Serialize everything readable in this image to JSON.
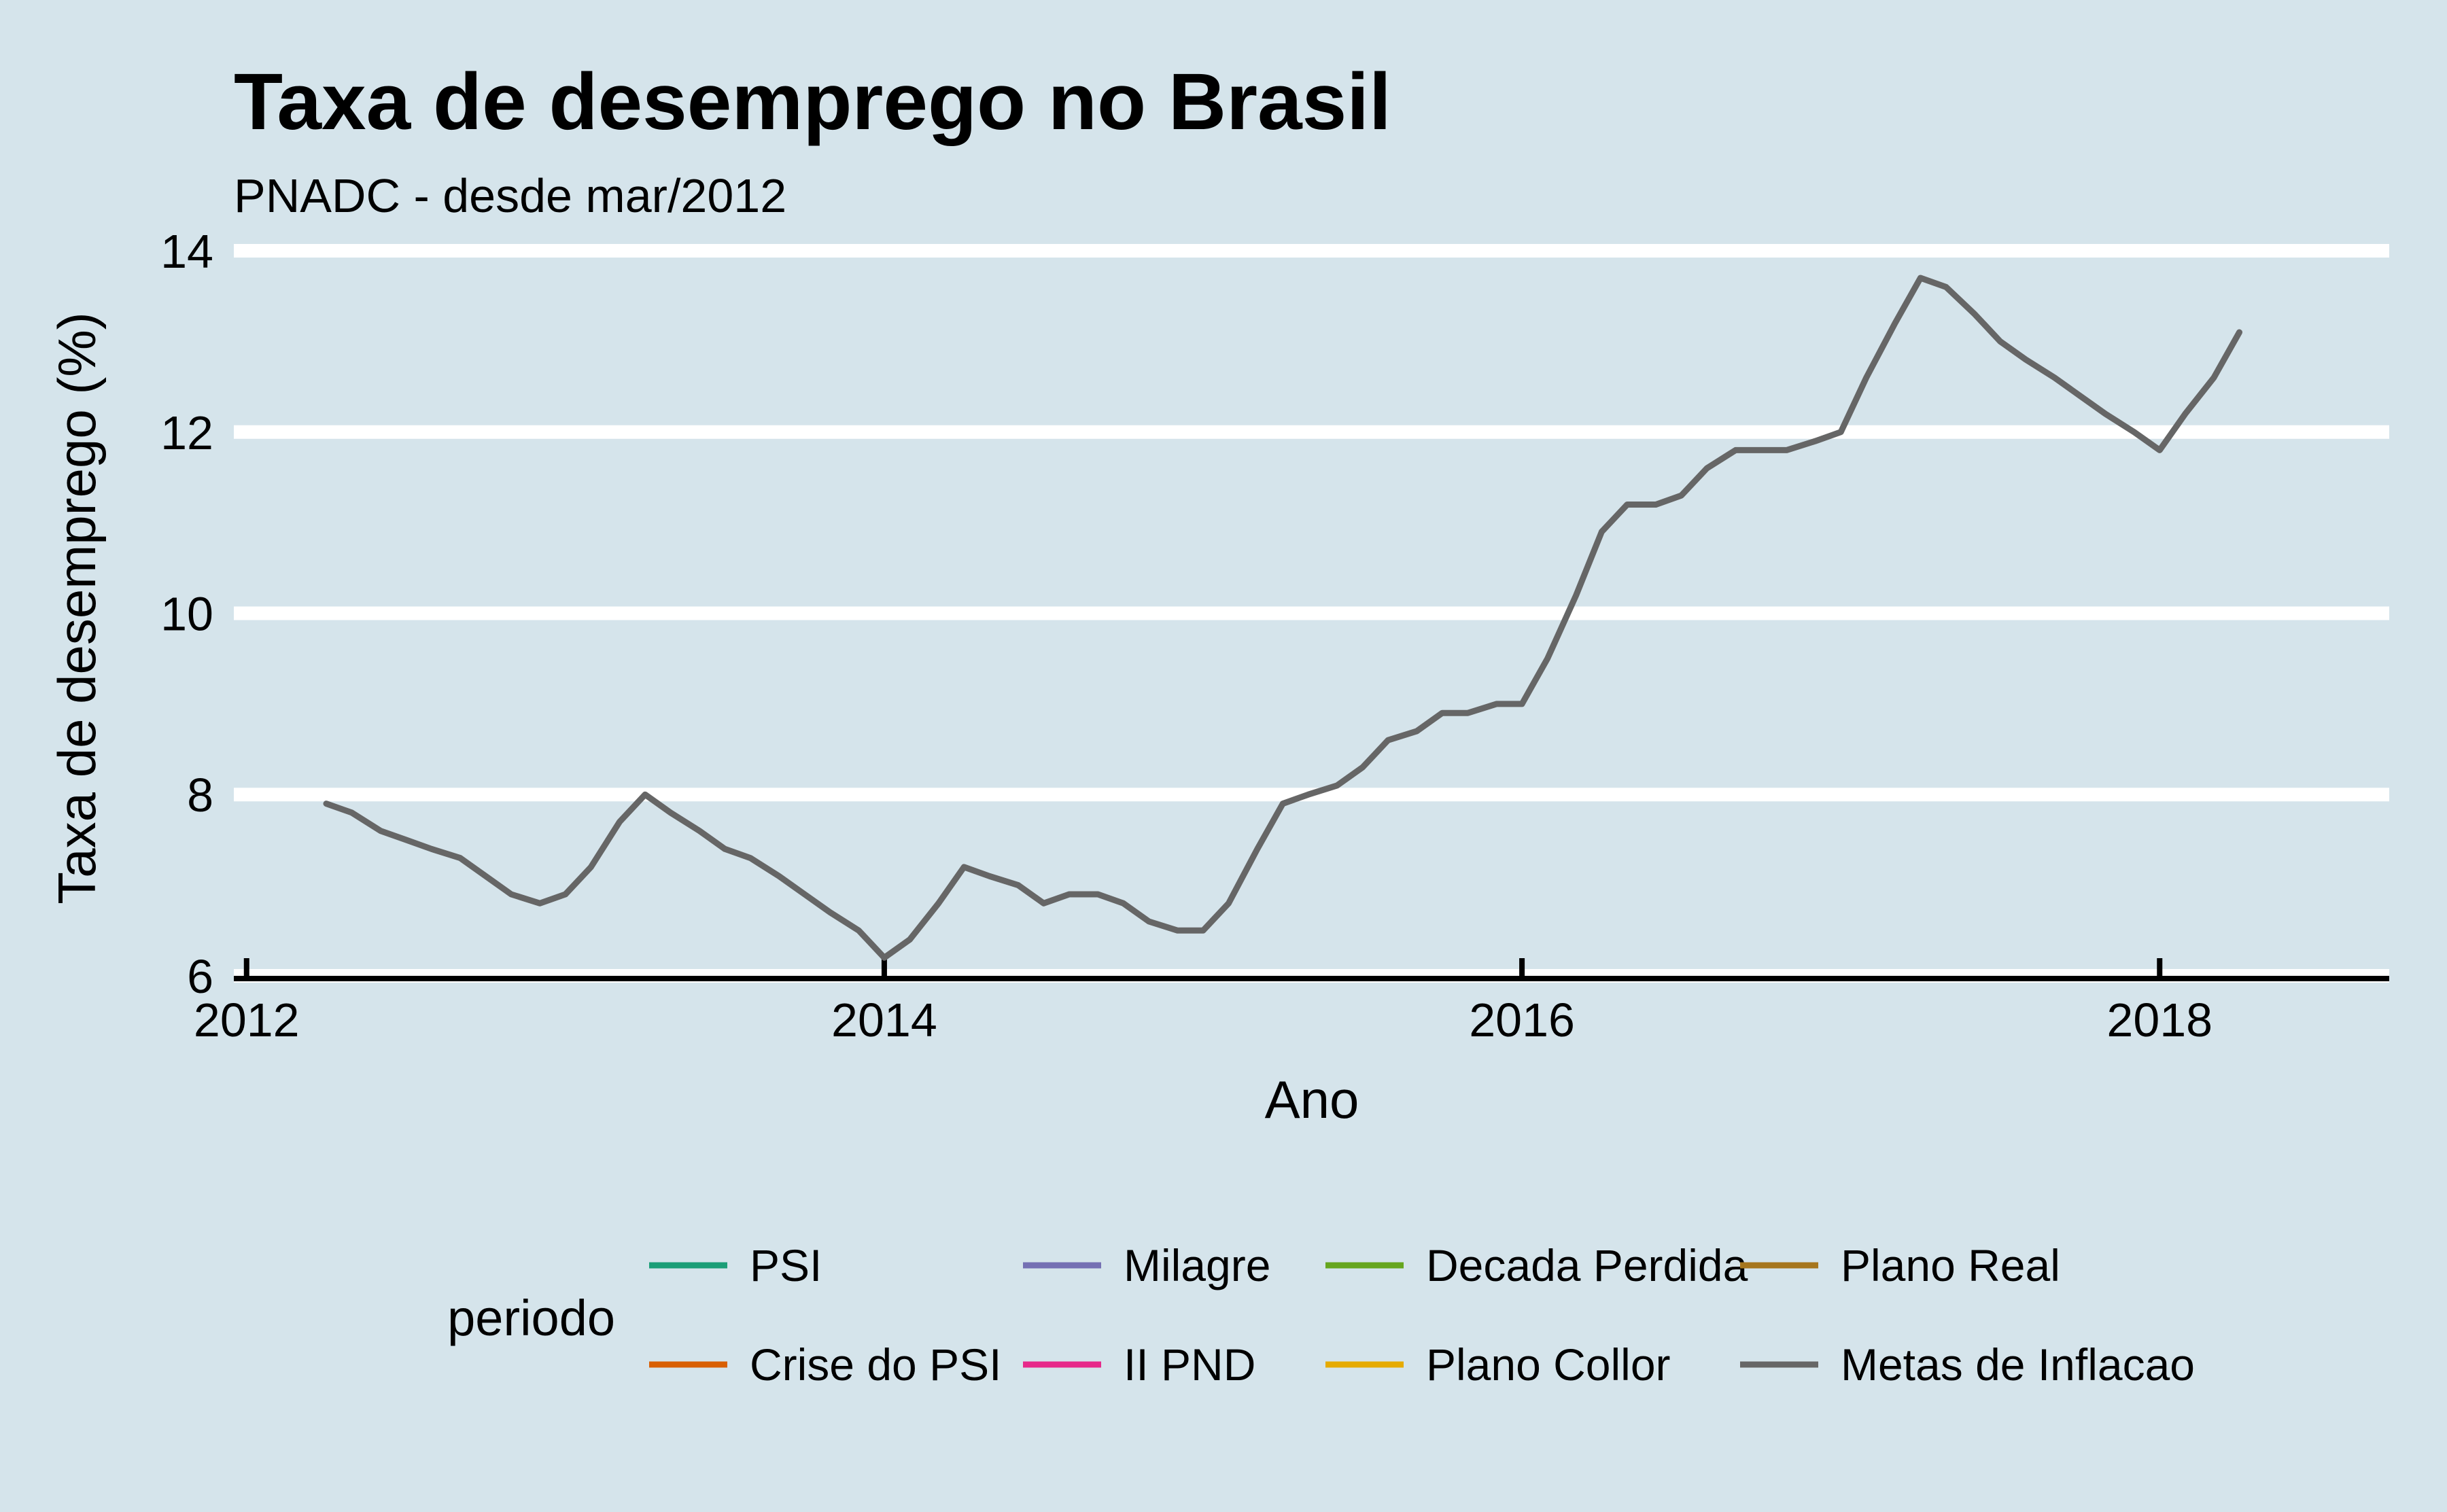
{
  "chart_data": {
    "type": "line",
    "title": "Taxa de desemprego no Brasil",
    "subtitle": "PNADC - desde mar/2012",
    "xlabel": "Ano",
    "ylabel": "Taxa de desemprego (%)",
    "xlim": [
      2011.96,
      2018.72
    ],
    "ylim": [
      5.97,
      14.03
    ],
    "x_ticks": [
      2012,
      2014,
      2016,
      2018
    ],
    "y_ticks": [
      6,
      8,
      10,
      12,
      14
    ],
    "grid": "horizontal",
    "legend_placement": "bottom",
    "legend_title": "periodo",
    "legend": [
      {
        "name": "PSI",
        "color": "#1b9e77"
      },
      {
        "name": "Crise do PSI",
        "color": "#d95f02"
      },
      {
        "name": "Milagre",
        "color": "#7570b3"
      },
      {
        "name": "II PND",
        "color": "#e7298a"
      },
      {
        "name": "Decada Perdida",
        "color": "#66a61e"
      },
      {
        "name": "Plano Collor",
        "color": "#e6ab02"
      },
      {
        "name": "Plano Real",
        "color": "#a6761d"
      },
      {
        "name": "Metas de Inflacao",
        "color": "#666666"
      }
    ],
    "series": [
      {
        "name": "Metas de Inflacao",
        "color": "#666666",
        "x": [
          2012.25,
          2012.33,
          2012.42,
          2012.5,
          2012.58,
          2012.67,
          2012.75,
          2012.83,
          2012.92,
          2013.0,
          2013.08,
          2013.17,
          2013.25,
          2013.33,
          2013.42,
          2013.5,
          2013.58,
          2013.67,
          2013.75,
          2013.83,
          2013.92,
          2014.0,
          2014.08,
          2014.17,
          2014.25,
          2014.33,
          2014.42,
          2014.5,
          2014.58,
          2014.67,
          2014.75,
          2014.83,
          2014.92,
          2015.0,
          2015.08,
          2015.17,
          2015.25,
          2015.33,
          2015.42,
          2015.5,
          2015.58,
          2015.67,
          2015.75,
          2015.83,
          2015.92,
          2016.0,
          2016.08,
          2016.17,
          2016.25,
          2016.33,
          2016.42,
          2016.5,
          2016.58,
          2016.67,
          2016.75,
          2016.83,
          2016.92,
          2017.0,
          2017.08,
          2017.17,
          2017.25,
          2017.33,
          2017.42,
          2017.5,
          2017.58,
          2017.67,
          2017.75,
          2017.83,
          2017.92,
          2018.0,
          2018.08,
          2018.17,
          2018.25
        ],
        "y": [
          7.9,
          7.8,
          7.6,
          7.5,
          7.4,
          7.3,
          7.1,
          6.9,
          6.8,
          6.9,
          7.2,
          7.7,
          8.0,
          7.8,
          7.6,
          7.4,
          7.3,
          7.1,
          6.9,
          6.7,
          6.5,
          6.2,
          6.4,
          6.8,
          7.2,
          7.1,
          7.0,
          6.8,
          6.9,
          6.9,
          6.8,
          6.6,
          6.5,
          6.5,
          6.8,
          7.4,
          7.9,
          8.0,
          8.1,
          8.3,
          8.6,
          8.7,
          8.9,
          8.9,
          9.0,
          9.0,
          9.5,
          10.2,
          10.9,
          11.2,
          11.2,
          11.3,
          11.6,
          11.8,
          11.8,
          11.8,
          11.9,
          12.0,
          12.6,
          13.2,
          13.7,
          13.6,
          13.3,
          13.0,
          12.8,
          12.6,
          12.4,
          12.2,
          12.0,
          11.8,
          12.2,
          12.6,
          13.1
        ]
      }
    ]
  }
}
